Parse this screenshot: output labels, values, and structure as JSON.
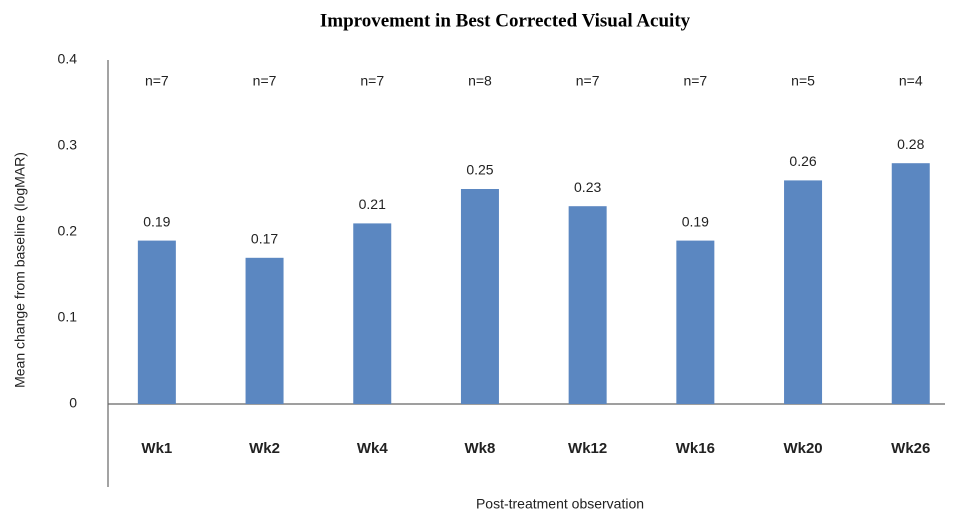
{
  "chart_data": {
    "type": "bar",
    "title": "Improvement in Best Corrected Visual Acuity",
    "y_label": "Mean change from baseline (logMAR)",
    "x_label": "Post-treatment observation",
    "categories": [
      "Wk1",
      "Wk2",
      "Wk4",
      "Wk8",
      "Wk12",
      "Wk16",
      "Wk20",
      "Wk26"
    ],
    "values": [
      0.19,
      0.17,
      0.21,
      0.25,
      0.23,
      0.19,
      0.26,
      0.28
    ],
    "annotations": [
      "n=7",
      "n=7",
      "n=7",
      "n=8",
      "n=7",
      "n=7",
      "n=5",
      "n=4"
    ],
    "color": "#5b87c1",
    "ylim": [
      0,
      0.4
    ],
    "yticks": [
      0,
      0.1,
      0.2,
      0.3,
      0.4
    ],
    "grid": false
  }
}
